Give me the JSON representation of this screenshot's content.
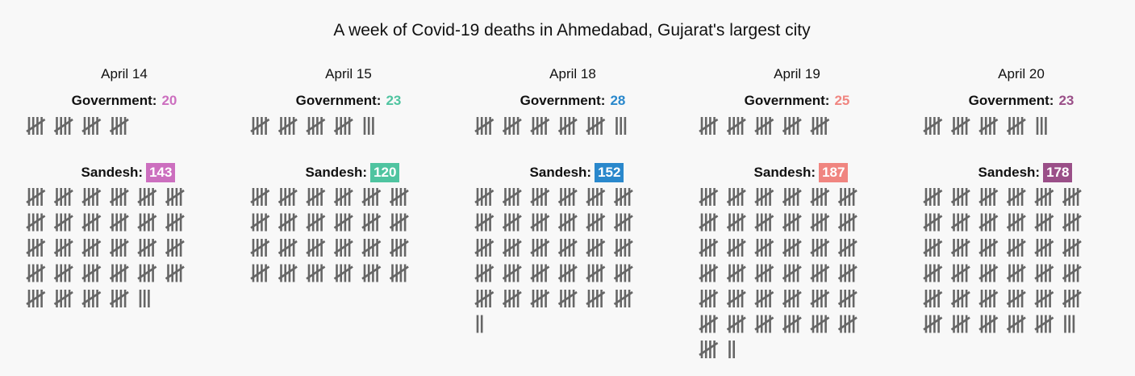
{
  "title": "A week of Covid-19 deaths in Ahmedabad, Gujarat's largest city",
  "labels": {
    "government": "Government:",
    "sandesh": "Sandesh:"
  },
  "colors": {
    "tally": "#666666",
    "background": "#f8f8f8"
  },
  "chart_data": {
    "type": "tally",
    "title": "A week of Covid-19 deaths in Ahmedabad, Gujarat's largest city",
    "categories": [
      "April 14",
      "April 15",
      "April 18",
      "April 19",
      "April 20"
    ],
    "series": [
      {
        "name": "Government",
        "values": [
          20,
          23,
          28,
          25,
          23
        ]
      },
      {
        "name": "Sandesh",
        "values": [
          143,
          120,
          152,
          187,
          178
        ]
      }
    ],
    "days": [
      {
        "date": "April 14",
        "government": "20",
        "sandesh": "143",
        "color": "#cc6fbf"
      },
      {
        "date": "April 15",
        "government": "23",
        "sandesh": "120",
        "color": "#4fc4a0"
      },
      {
        "date": "April 18",
        "government": "28",
        "sandesh": "152",
        "color": "#2a88cc"
      },
      {
        "date": "April 19",
        "government": "25",
        "sandesh": "187",
        "color": "#f08580"
      },
      {
        "date": "April 20",
        "government": "23",
        "sandesh": "178",
        "color": "#9a4f88"
      }
    ]
  }
}
